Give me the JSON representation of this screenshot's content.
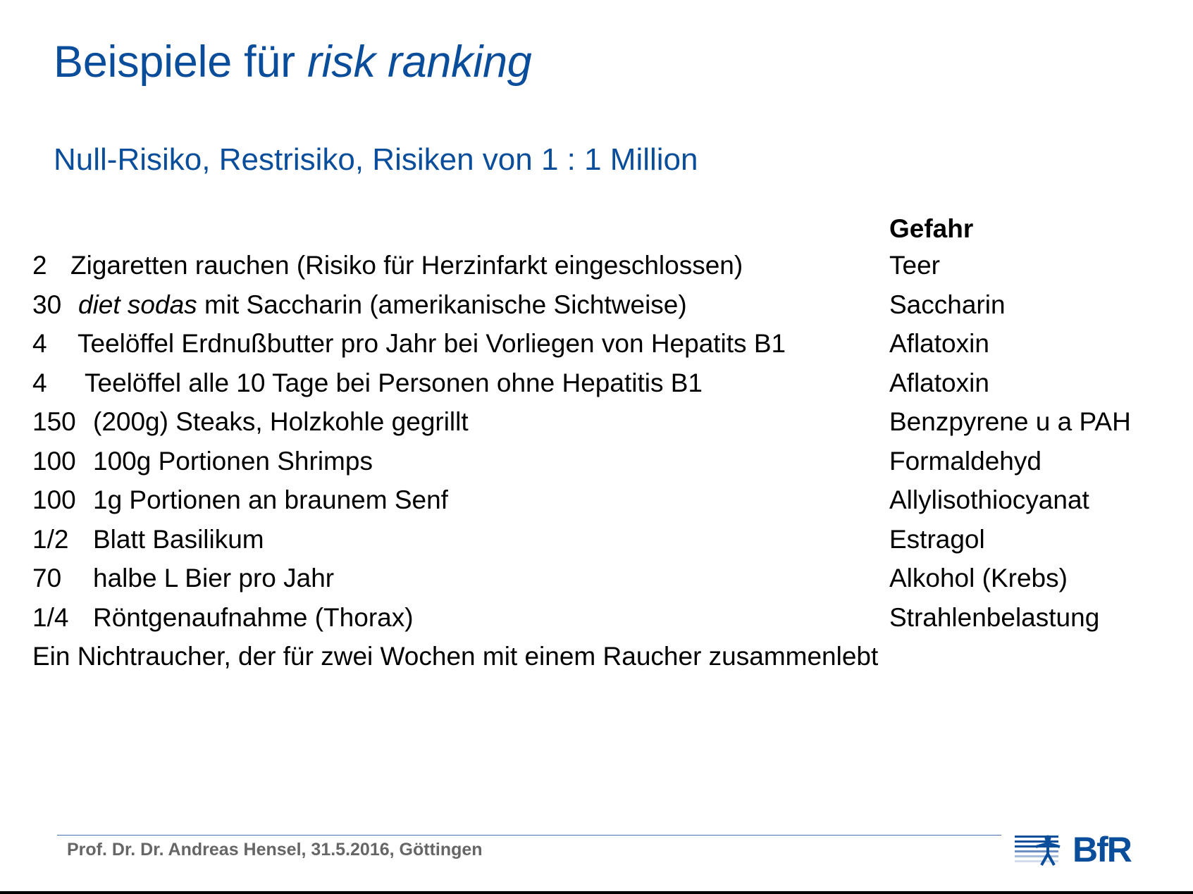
{
  "title": {
    "text_plain": "Beispiele für ",
    "text_italic": "risk ranking"
  },
  "subtitle": "Null-Risiko, Restrisiko, Risiken von 1 : 1 Million",
  "hazard_header": "Gefahr",
  "rows": [
    {
      "num": "2",
      "desc_italic": "",
      "desc": "Zigaretten rauchen (Risiko für Herzinfarkt eingeschlossen)",
      "hazard": "Teer"
    },
    {
      "num": "30",
      "desc_italic": "diet sodas",
      "desc": " mit Saccharin (amerikanische Sichtweise)",
      "hazard": "Saccharin"
    },
    {
      "num": "4",
      "desc_italic": "",
      "desc": "Teelöffel  Erdnußbutter pro Jahr bei Vorliegen von Hepatits B1",
      "hazard": "Aflatoxin"
    },
    {
      "num": "4",
      "desc_italic": "",
      "desc": "Teelöffel alle 10 Tage bei Personen ohne Hepatitis B1",
      "hazard": "Aflatoxin"
    },
    {
      "num": "150",
      "desc_italic": "",
      "desc": "(200g) Steaks, Holzkohle gegrillt",
      "hazard": "Benzpyrene u a PAH"
    },
    {
      "num": "100",
      "desc_italic": "",
      "desc": "100g Portionen Shrimps",
      "hazard": "Formaldehyd"
    },
    {
      "num": "100",
      "desc_italic": "",
      "desc": "1g Portionen an braunem Senf",
      "hazard": "Allylisothiocyanat"
    },
    {
      "num": "1/2",
      "desc_italic": "",
      "desc": "Blatt Basilikum",
      "hazard": "Estragol"
    },
    {
      "num": "70",
      "desc_italic": "",
      "desc": "halbe L Bier pro Jahr",
      "hazard": "Alkohol (Krebs)"
    },
    {
      "num": "1/4",
      "desc_italic": "",
      "desc": "Röntgenaufnahme (Thorax)",
      "hazard": "Strahlenbelastung"
    }
  ],
  "last_line": "Ein Nichtraucher, der für zwei Wochen mit einem Raucher zusammenlebt",
  "footer": "Prof. Dr. Dr. Andreas Hensel, 31.5.2016, Göttingen",
  "logo": {
    "text": "BfR",
    "icon": "bfr-logo-icon",
    "color": "#0a4d9a"
  },
  "colors": {
    "accent": "#0a4d9a",
    "footer_text": "#666666"
  }
}
